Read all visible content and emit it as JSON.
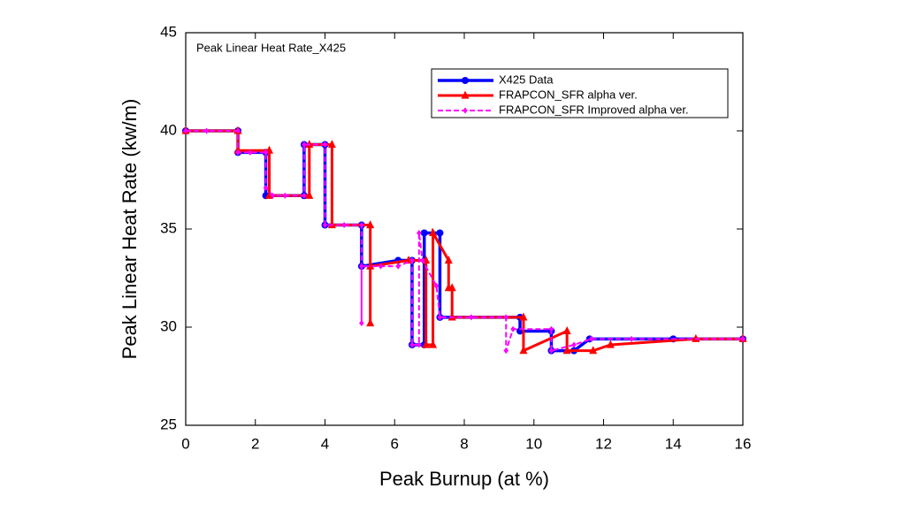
{
  "chart_data": {
    "type": "line",
    "title": "Peak Linear Heat Rate_X425",
    "x_label": "Peak Burnup (at %)",
    "y_label": "Peak Linear Heat Rate (kw/m)",
    "xlim": [
      0,
      16
    ],
    "ylim": [
      25,
      45
    ],
    "xticks": [
      0,
      2,
      4,
      6,
      8,
      10,
      12,
      14,
      16
    ],
    "yticks": [
      25,
      30,
      35,
      40,
      45
    ],
    "legend": "upper right",
    "series": [
      {
        "name": "X425 Data",
        "color": "#0000ff",
        "marker": "circle",
        "x": [
          0,
          1.5,
          1.5,
          2.3,
          2.3,
          3.4,
          3.4,
          4.0,
          4.0,
          5.05,
          5.05,
          6.1,
          6.5,
          6.5,
          6.85,
          6.85,
          7.3,
          7.3,
          9.6,
          9.6,
          10.5,
          10.5,
          11.15,
          11.6,
          14.0,
          16.0
        ],
        "values": [
          40,
          40,
          38.9,
          38.9,
          36.7,
          36.7,
          39.3,
          39.3,
          35.2,
          35.2,
          33.1,
          33.4,
          33.4,
          29.1,
          29.1,
          34.8,
          34.8,
          30.5,
          30.5,
          29.8,
          29.8,
          28.8,
          28.8,
          29.4,
          29.4,
          29.4
        ]
      },
      {
        "name": "FRAPCON_SFR alpha ver.",
        "color": "#ff0000",
        "marker": "triangle",
        "x": [
          0,
          1.5,
          1.5,
          2.4,
          2.4,
          3.55,
          3.55,
          4.2,
          4.2,
          5.3,
          5.3,
          5.3,
          6.4,
          6.9,
          6.9,
          7.1,
          7.1,
          7.55,
          7.55,
          7.65,
          7.65,
          9.7,
          9.7,
          10.95,
          10.95,
          11.7,
          12.2,
          14.65,
          16.0
        ],
        "values": [
          40,
          40,
          39.0,
          39.0,
          36.7,
          36.7,
          39.3,
          39.3,
          35.2,
          35.2,
          30.2,
          33.1,
          33.4,
          33.4,
          29.1,
          29.1,
          34.8,
          33.4,
          32.0,
          32.0,
          30.5,
          30.5,
          28.8,
          29.8,
          28.8,
          28.8,
          29.1,
          29.4,
          29.4
        ]
      },
      {
        "name": "FRAPCON_SFR Improved alpha ver.",
        "color": "#ff00ff",
        "marker": "diamond",
        "x": [
          0,
          0.6,
          1.5,
          1.5,
          1.85,
          2.3,
          2.3,
          2.5,
          2.85,
          3.4,
          3.4,
          4.0,
          4.0,
          4.55,
          5.05,
          5.05,
          5.05,
          5.6,
          6.1,
          6.5,
          6.5,
          6.7,
          6.7,
          6.8,
          7.2,
          7.3,
          8.2,
          9.2,
          9.2,
          9.4,
          10.5,
          10.5,
          11.15,
          11.65,
          12.8,
          16.0
        ],
        "values": [
          40,
          40,
          40,
          38.9,
          38.9,
          38.9,
          37.1,
          36.7,
          36.7,
          36.7,
          39.3,
          39.3,
          35.2,
          35.2,
          35.2,
          30.2,
          33.1,
          33.1,
          33.1,
          33.4,
          29.1,
          29.1,
          34.8,
          33.4,
          32.1,
          30.5,
          30.5,
          30.5,
          28.8,
          29.9,
          29.9,
          28.8,
          29.1,
          29.4,
          29.4,
          29.4
        ]
      }
    ]
  }
}
